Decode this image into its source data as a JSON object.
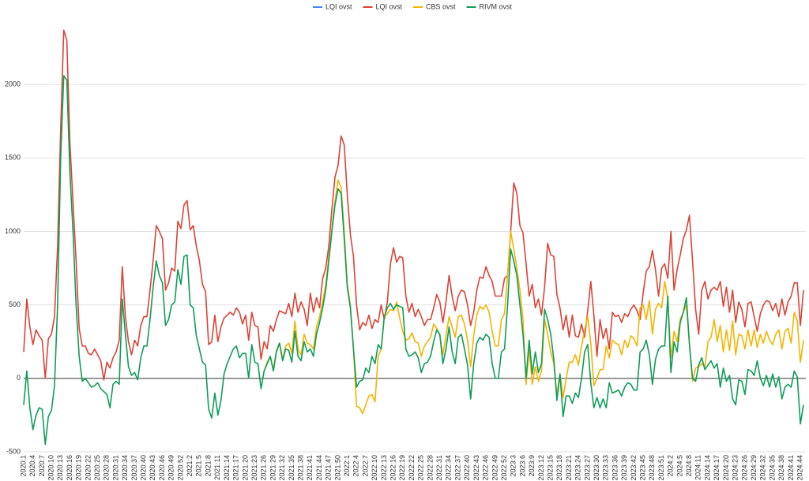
{
  "chart_data": {
    "type": "line",
    "categories": [
      "2020:1",
      null,
      null,
      "2020:4",
      null,
      null,
      "2020:7",
      null,
      null,
      "2020:10",
      null,
      null,
      "2020:13",
      null,
      null,
      "2020:16",
      null,
      null,
      "2020:19",
      null,
      null,
      "2020:22",
      null,
      null,
      "2020:25",
      null,
      null,
      "2020:28",
      null,
      null,
      "2020:31",
      null,
      null,
      "2020:34",
      null,
      null,
      "2020:37",
      null,
      null,
      "2020:40",
      null,
      null,
      "2020:43",
      null,
      null,
      "2020:46",
      null,
      null,
      "2020:49",
      null,
      null,
      "2020:52",
      null,
      null,
      "2021:2",
      null,
      null,
      "2021:5",
      null,
      null,
      "2021:8",
      null,
      null,
      "2021:11",
      null,
      null,
      "2021:14",
      null,
      null,
      "2021:17",
      null,
      null,
      "2021:20",
      null,
      null,
      "2021:23",
      null,
      null,
      "2021:26",
      null,
      null,
      "2021:29",
      null,
      null,
      "2021:32",
      null,
      null,
      "2021:35",
      null,
      null,
      "2021:38",
      null,
      null,
      "2021:41",
      null,
      null,
      "2021:44",
      null,
      null,
      "2021:47",
      null,
      null,
      "2021:50",
      null,
      null,
      "2022:1",
      null,
      null,
      "2022:4",
      null,
      null,
      "2022:7",
      null,
      null,
      "2022:10",
      null,
      null,
      "2022:13",
      null,
      null,
      "2022:16",
      null,
      null,
      "2022:19",
      null,
      null,
      "2022:22",
      null,
      null,
      "2022:25",
      null,
      null,
      "2022:28",
      null,
      null,
      "2022:31",
      null,
      null,
      "2022:34",
      null,
      null,
      "2022:37",
      null,
      null,
      "2022:40",
      null,
      null,
      "2022:43",
      null,
      null,
      "2022:46",
      null,
      null,
      "2022:49",
      null,
      null,
      "2022:52",
      null,
      null,
      "2023:3",
      null,
      null,
      "2023:6",
      null,
      null,
      "2023:9",
      null,
      null,
      "2023:12",
      null,
      null,
      "2023:15",
      null,
      null,
      "2023:18",
      null,
      null,
      "2023:21",
      null,
      null,
      "2023:24",
      null,
      null,
      "2023:27",
      null,
      null,
      "2023:30",
      null,
      null,
      "2023:33",
      null,
      null,
      "2023:36",
      null,
      null,
      "2023:39",
      null,
      null,
      "2023:42",
      null,
      null,
      "2023:45",
      null,
      null,
      "2023:48",
      null,
      null,
      "2023:51",
      null,
      null,
      "2024:2",
      null,
      null,
      "2024:5",
      null,
      null,
      "2024:8",
      null,
      null,
      "2024:11",
      null,
      null,
      "2024:14",
      null,
      null,
      "2024:17",
      null,
      null,
      "2024:20",
      null,
      null,
      "2024:23",
      null,
      null,
      "2024:26",
      null,
      null,
      "2024:29",
      null,
      null,
      "2024:32",
      null,
      null,
      "2024:35",
      null,
      null,
      "2024:38",
      null,
      null,
      "2024:41",
      null,
      null,
      "2024:44",
      null
    ],
    "series": [
      {
        "name": "LQI ovst",
        "color": "#4285f4",
        "values": [
          null,
          null,
          null,
          null,
          null,
          null,
          null,
          null,
          null,
          null,
          null,
          null,
          null,
          null,
          null,
          null,
          null,
          null,
          null,
          null,
          null,
          null,
          null,
          null,
          null,
          null,
          null,
          null,
          null,
          null,
          null,
          null,
          null,
          null,
          null,
          null,
          null,
          null,
          null,
          null,
          null,
          null,
          null,
          null,
          null,
          null,
          null,
          null,
          null,
          null,
          null,
          null,
          null,
          null,
          null,
          null,
          null,
          null,
          null,
          null,
          null,
          null,
          null,
          null,
          null,
          null,
          null,
          null,
          null,
          null,
          null,
          null,
          null,
          null,
          null,
          null,
          null,
          null,
          null,
          null,
          null,
          null,
          null,
          null,
          null,
          null,
          null,
          null,
          null,
          null,
          null,
          null,
          null,
          null,
          null,
          null,
          null,
          null,
          null,
          null,
          null,
          null,
          null,
          null,
          null,
          null,
          null,
          null,
          null,
          null,
          null,
          null,
          null,
          null,
          null,
          null,
          null,
          null,
          null,
          null,
          null,
          null,
          null,
          null,
          null,
          null,
          null,
          null,
          null,
          null,
          null,
          null,
          null,
          null,
          null,
          null,
          null,
          null,
          null,
          null,
          null,
          null,
          null,
          null,
          null,
          null,
          null,
          null,
          null,
          null,
          null,
          null,
          null,
          null,
          null,
          null,
          null,
          null,
          null,
          null,
          null,
          null,
          null,
          null,
          null,
          null,
          null,
          null,
          null,
          null,
          null,
          null,
          null,
          null,
          null,
          null,
          null,
          null,
          null,
          null,
          null,
          null,
          null,
          null,
          null,
          null,
          null,
          null,
          null,
          null,
          null,
          null,
          null,
          null,
          null,
          null,
          null,
          null,
          null,
          null,
          null,
          null,
          null,
          null,
          null,
          null,
          null,
          null,
          null,
          null,
          null,
          null,
          null,
          null,
          null,
          null,
          null,
          null,
          null,
          null,
          null,
          null,
          null,
          null,
          null,
          null,
          null,
          null,
          null,
          null,
          null,
          null,
          null,
          null,
          null,
          null,
          null,
          null,
          null,
          null,
          null,
          null,
          null,
          null,
          null,
          null,
          null,
          null,
          null,
          null,
          null,
          null,
          null,
          null
        ]
      },
      {
        "name": "LQI ovst",
        "color": "#db4437",
        "values": [
          180,
          540,
          350,
          230,
          330,
          290,
          260,
          0,
          270,
          300,
          420,
          900,
          1700,
          2370,
          2300,
          1600,
          1200,
          800,
          340,
          220,
          220,
          170,
          160,
          200,
          160,
          120,
          -10,
          110,
          70,
          140,
          180,
          260,
          760,
          420,
          250,
          160,
          260,
          220,
          360,
          420,
          420,
          600,
          800,
          1040,
          1000,
          950,
          600,
          650,
          750,
          730,
          1070,
          1020,
          1180,
          1210,
          1010,
          1040,
          900,
          800,
          640,
          590,
          230,
          250,
          430,
          250,
          350,
          410,
          430,
          450,
          430,
          480,
          450,
          370,
          430,
          260,
          450,
          360,
          350,
          130,
          250,
          200,
          360,
          320,
          400,
          460,
          450,
          440,
          510,
          420,
          580,
          450,
          520,
          470,
          360,
          580,
          450,
          550,
          480,
          680,
          750,
          900,
          1150,
          1370,
          1450,
          1650,
          1590,
          1250,
          980,
          830,
          500,
          330,
          380,
          360,
          430,
          340,
          400,
          380,
          500,
          400,
          520,
          780,
          890,
          790,
          830,
          820,
          560,
          450,
          510,
          420,
          470,
          420,
          360,
          400,
          400,
          480,
          570,
          520,
          380,
          520,
          700,
          560,
          460,
          560,
          600,
          590,
          500,
          360,
          450,
          600,
          690,
          680,
          760,
          700,
          660,
          560,
          560,
          560,
          680,
          700,
          1000,
          1330,
          1260,
          1040,
          990,
          780,
          560,
          640,
          480,
          540,
          430,
          620,
          920,
          840,
          830,
          570,
          480,
          330,
          430,
          280,
          430,
          290,
          280,
          370,
          280,
          460,
          660,
          430,
          150,
          400,
          270,
          340,
          200,
          450,
          420,
          430,
          380,
          440,
          420,
          470,
          500,
          460,
          400,
          580,
          730,
          760,
          870,
          740,
          560,
          750,
          780,
          680,
          1000,
          600,
          740,
          840,
          950,
          1010,
          1110,
          800,
          470,
          300,
          600,
          660,
          540,
          600,
          620,
          600,
          660,
          490,
          620,
          450,
          600,
          380,
          520,
          470,
          350,
          510,
          520,
          420,
          320,
          440,
          500,
          530,
          520,
          460,
          510,
          420,
          540,
          430,
          520,
          560,
          650,
          650,
          360,
          600
        ]
      },
      {
        "name": "CBS ovst",
        "color": "#f4b400",
        "values": [
          null,
          null,
          null,
          null,
          null,
          null,
          null,
          null,
          null,
          null,
          null,
          null,
          null,
          null,
          null,
          null,
          null,
          null,
          null,
          null,
          null,
          null,
          null,
          null,
          null,
          null,
          null,
          null,
          null,
          null,
          null,
          null,
          null,
          null,
          null,
          null,
          null,
          null,
          null,
          null,
          null,
          null,
          null,
          null,
          null,
          null,
          null,
          null,
          null,
          null,
          null,
          null,
          null,
          null,
          null,
          null,
          null,
          null,
          null,
          null,
          null,
          null,
          null,
          null,
          null,
          null,
          null,
          null,
          null,
          null,
          null,
          null,
          null,
          null,
          null,
          null,
          null,
          null,
          50,
          110,
          150,
          60,
          190,
          240,
          130,
          220,
          240,
          170,
          390,
          200,
          160,
          300,
          240,
          230,
          200,
          350,
          420,
          520,
          640,
          830,
          1020,
          1200,
          1350,
          1300,
          1000,
          640,
          500,
          200,
          -190,
          -200,
          -240,
          -180,
          -120,
          -110,
          -160,
          150,
          200,
          420,
          440,
          470,
          460,
          520,
          410,
          320,
          260,
          270,
          310,
          250,
          240,
          150,
          220,
          250,
          280,
          370,
          340,
          290,
          160,
          290,
          420,
          350,
          280,
          420,
          430,
          370,
          260,
          80,
          290,
          430,
          490,
          470,
          500,
          450,
          320,
          220,
          220,
          400,
          440,
          700,
          1000,
          880,
          750,
          600,
          400,
          -40,
          200,
          -40,
          80,
          -20,
          50,
          400,
          300,
          180,
          100,
          -110,
          30,
          -130,
          0,
          110,
          110,
          160,
          90,
          220,
          330,
          420,
          240,
          -50,
          0,
          60,
          60,
          220,
          140,
          260,
          240,
          230,
          160,
          260,
          210,
          290,
          270,
          220,
          480,
          500,
          400,
          530,
          300,
          470,
          510,
          480,
          660,
          540,
          140,
          320,
          250,
          400,
          450,
          500,
          230,
          -20,
          70,
          80,
          100,
          80,
          250,
          280,
          400,
          250,
          360,
          180,
          330,
          190,
          390,
          160,
          300,
          290,
          200,
          330,
          220,
          330,
          210,
          300,
          240,
          320,
          260,
          230,
          300,
          330,
          200,
          320,
          340,
          240,
          450,
          390,
          110,
          260
        ]
      },
      {
        "name": "RIVM ovst",
        "color": "#0f9d58",
        "values": [
          -180,
          50,
          -200,
          -350,
          -250,
          -200,
          -210,
          -450,
          -260,
          -220,
          -50,
          500,
          1500,
          2060,
          2030,
          1400,
          1000,
          500,
          150,
          -20,
          0,
          -30,
          -60,
          -50,
          -30,
          -70,
          -90,
          -110,
          -200,
          -40,
          -20,
          -40,
          540,
          300,
          80,
          20,
          40,
          -10,
          140,
          220,
          220,
          400,
          620,
          800,
          700,
          650,
          360,
          400,
          500,
          520,
          740,
          640,
          830,
          840,
          500,
          480,
          290,
          200,
          110,
          90,
          -210,
          -270,
          -100,
          -250,
          -150,
          30,
          100,
          150,
          200,
          220,
          140,
          170,
          170,
          0,
          230,
          110,
          100,
          -70,
          50,
          100,
          150,
          50,
          180,
          240,
          120,
          200,
          190,
          110,
          320,
          150,
          120,
          250,
          180,
          200,
          150,
          300,
          380,
          480,
          600,
          800,
          1000,
          1180,
          1290,
          1260,
          950,
          620,
          480,
          200,
          -60,
          -20,
          -10,
          70,
          40,
          150,
          100,
          230,
          200,
          420,
          480,
          510,
          470,
          500,
          490,
          480,
          200,
          150,
          160,
          180,
          140,
          40,
          100,
          110,
          150,
          250,
          330,
          300,
          100,
          200,
          350,
          180,
          100,
          280,
          300,
          200,
          90,
          -140,
          100,
          240,
          280,
          260,
          300,
          280,
          100,
          0,
          0,
          180,
          200,
          500,
          880,
          800,
          700,
          500,
          300,
          0,
          260,
          30,
          180,
          40,
          100,
          470,
          400,
          300,
          130,
          -150,
          30,
          -260,
          -120,
          -120,
          -170,
          -100,
          -130,
          0,
          180,
          230,
          -30,
          -200,
          -130,
          -200,
          -140,
          -200,
          -30,
          -100,
          -90,
          -80,
          -120,
          -60,
          -30,
          -40,
          -80,
          -80,
          180,
          200,
          260,
          160,
          -40,
          130,
          200,
          220,
          220,
          560,
          40,
          250,
          180,
          380,
          450,
          550,
          230,
          0,
          -20,
          90,
          140,
          60,
          90,
          120,
          70,
          100,
          -60,
          70,
          -20,
          20,
          -140,
          -180,
          -10,
          -20,
          -110,
          60,
          50,
          20,
          120,
          0,
          -50,
          20,
          -60,
          30,
          -60,
          10,
          -140,
          -60,
          -40,
          -60,
          50,
          10,
          -310,
          -180
        ]
      }
    ],
    "ylim": [
      -500,
      2500
    ],
    "yticks": [
      -500,
      0,
      500,
      1000,
      1500,
      2000
    ],
    "grid": true,
    "legend": "top"
  }
}
